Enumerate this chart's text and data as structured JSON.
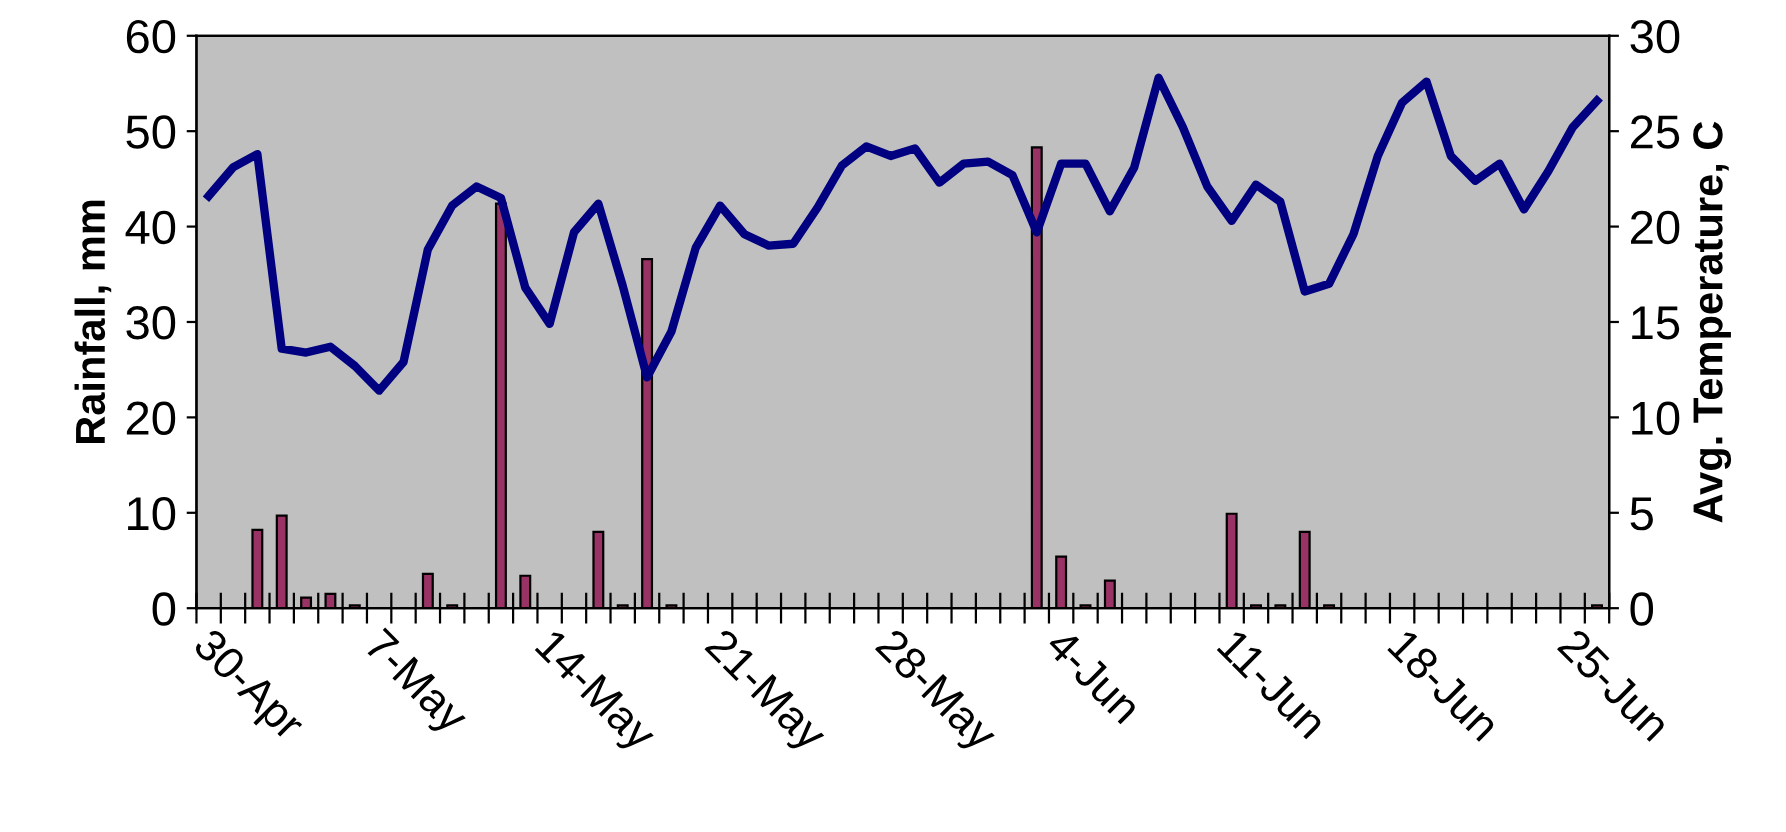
{
  "chart_data": {
    "type": "bar",
    "xlabel": null,
    "ylabel": "Rainfall, mm",
    "y2label": "Avg. Temperature, C",
    "categories": [
      "30-Apr",
      null,
      null,
      null,
      null,
      null,
      null,
      "7-May",
      null,
      null,
      null,
      null,
      null,
      null,
      "14-May",
      null,
      null,
      null,
      null,
      null,
      null,
      "21-May",
      null,
      null,
      null,
      null,
      null,
      null,
      "28-May",
      null,
      null,
      null,
      null,
      null,
      null,
      "4-Jun",
      null,
      null,
      null,
      null,
      null,
      null,
      "11-Jun",
      null,
      null,
      null,
      null,
      null,
      null,
      "18-Jun",
      null,
      null,
      null,
      null,
      null,
      null,
      "25-Jun",
      null
    ],
    "series": [
      {
        "color": "#993366",
        "values": [
          null,
          null,
          8.2,
          9.7,
          1.1,
          1.5,
          0.3,
          null,
          null,
          3.6,
          0.3,
          null,
          42.4,
          3.4,
          null,
          null,
          8.0,
          0.3,
          36.6,
          0.3,
          null,
          null,
          null,
          null,
          null,
          null,
          null,
          null,
          null,
          null,
          null,
          null,
          null,
          null,
          48.3,
          5.4,
          0.3,
          2.9,
          null,
          null,
          null,
          null,
          9.9,
          0.3,
          0.3,
          8.0,
          0.3,
          null,
          null,
          null,
          null,
          null,
          null,
          null,
          null,
          null,
          null,
          0.3
        ]
      },
      {
        "type": "line",
        "axis": "y2",
        "color": "#000080",
        "values": [
          21.6,
          23.1,
          23.8,
          13.6,
          13.4,
          13.7,
          12.7,
          11.4,
          12.9,
          18.8,
          21.1,
          22.1,
          21.5,
          16.8,
          14.9,
          19.7,
          21.2,
          16.9,
          12.1,
          14.5,
          18.9,
          21.1,
          19.6,
          19.0,
          19.1,
          21.0,
          23.2,
          24.2,
          23.7,
          24.1,
          22.3,
          23.3,
          23.4,
          22.7,
          19.7,
          23.3,
          23.3,
          20.8,
          23.1,
          27.8,
          25.2,
          22.1,
          20.3,
          22.2,
          21.3,
          16.6,
          17.0,
          19.6,
          23.7,
          26.5,
          27.6,
          23.7,
          22.4,
          23.3,
          20.9,
          22.9,
          25.2,
          26.6
        ]
      }
    ],
    "ylim": [
      0,
      60
    ],
    "yticks": [
      0,
      10,
      20,
      30,
      40,
      50,
      60
    ],
    "y2lim": [
      0,
      30
    ],
    "y2ticks": [
      0,
      5,
      10,
      15,
      20,
      25,
      30
    ],
    "grid": false,
    "legend": false,
    "marker": "none",
    "line_style": "solid"
  }
}
